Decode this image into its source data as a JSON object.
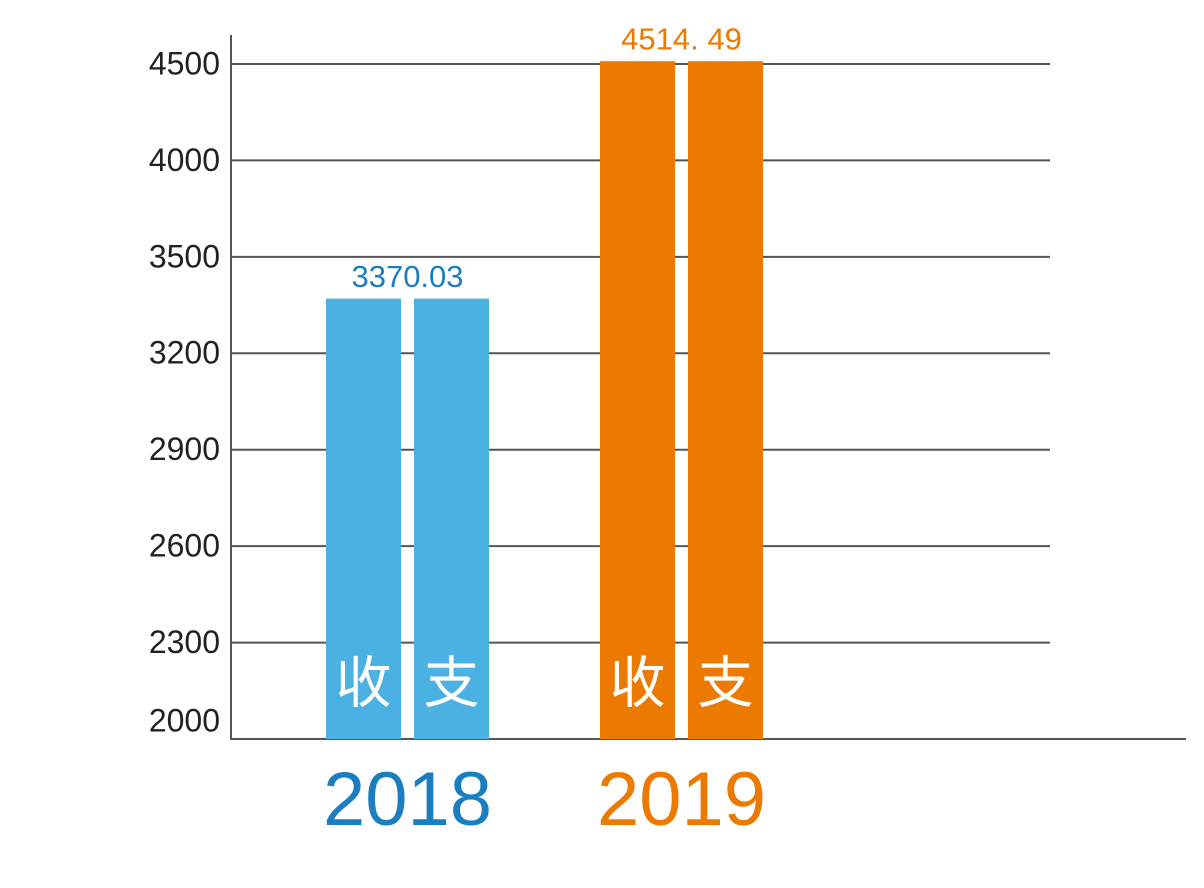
{
  "chart_data": {
    "type": "bar",
    "categories": [
      "2018",
      "2019"
    ],
    "bar_labels": [
      "收",
      "支"
    ],
    "values": [
      3370.03,
      4514.49
    ],
    "value_labels": [
      "3370.03",
      "4514. 49"
    ],
    "colors": [
      "#4bb1e2",
      "#ec7a00"
    ],
    "label_colors": [
      "#1a7ec0",
      "#ec7a00"
    ],
    "yticks": [
      2000,
      2300,
      2600,
      2900,
      3200,
      3500,
      4000,
      4500
    ],
    "grid": true
  }
}
